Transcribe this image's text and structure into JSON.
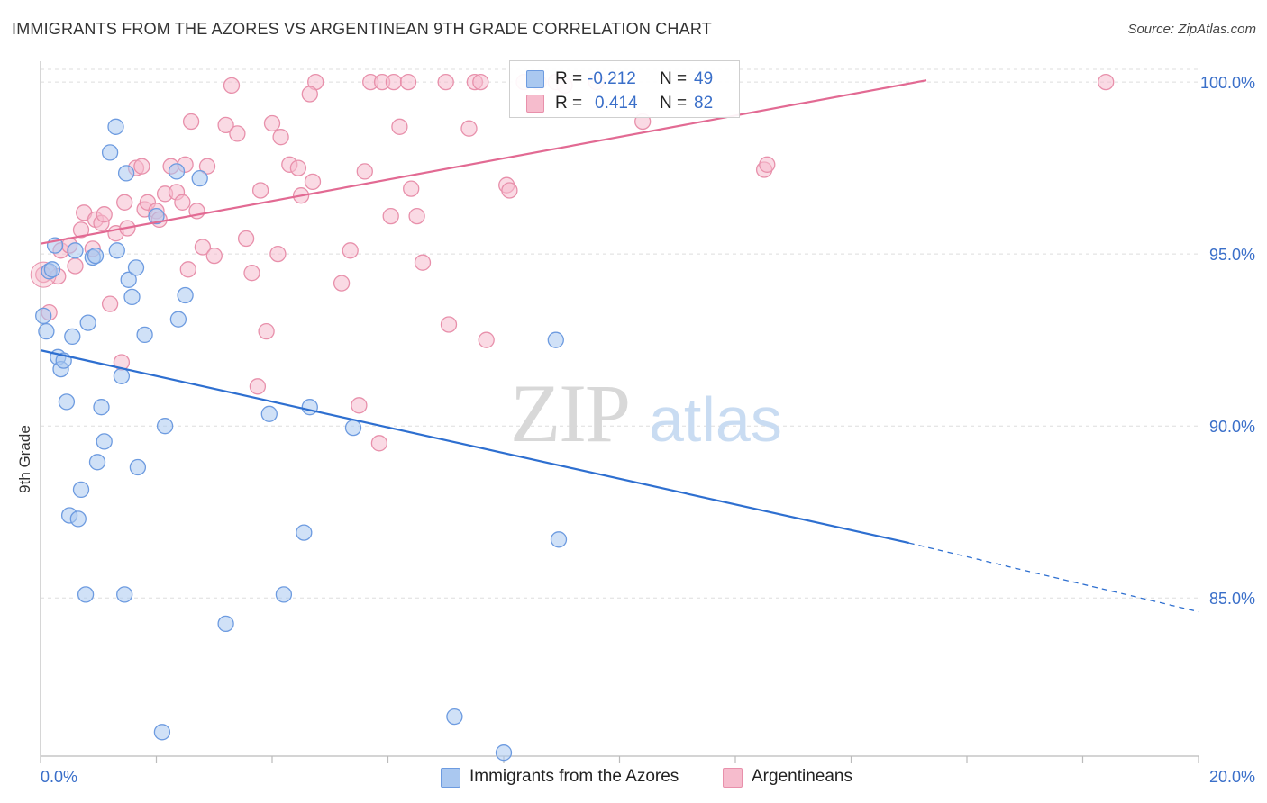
{
  "title": "IMMIGRANTS FROM THE AZORES VS ARGENTINEAN 9TH GRADE CORRELATION CHART",
  "source": "Source: ZipAtlas.com",
  "watermark": {
    "zip": "ZIP",
    "atlas": "atlas"
  },
  "legend": {
    "r_label": "R =",
    "n_label": "N =",
    "series": [
      {
        "name": "Immigrants from the Azores",
        "r": "-0.212",
        "n": "49"
      },
      {
        "name": "Argentineans",
        "r": "0.414",
        "n": "82"
      }
    ]
  },
  "colors": {
    "blue_fill": "#aac8f0",
    "blue_stroke": "#6d9be0",
    "blue_line": "#2e6fd0",
    "pink_fill": "#f6bccd",
    "pink_stroke": "#e890ab",
    "pink_line": "#e26a93",
    "tick_text": "#3a6fc9",
    "grid": "#dddddd"
  },
  "chart_data": {
    "type": "scatter",
    "title": "IMMIGRANTS FROM THE AZORES VS ARGENTINEAN 9TH GRADE CORRELATION CHART",
    "xlabel": "",
    "ylabel": "9th Grade",
    "xlim": [
      0,
      20
    ],
    "ylim": [
      80.4,
      100.5
    ],
    "x_tick_labels": [
      "0.0%",
      "20.0%"
    ],
    "y_tick_labels": [
      "100.0%",
      "95.0%",
      "90.0%",
      "85.0%"
    ],
    "y_ticks": [
      100,
      95,
      90,
      85
    ],
    "grid": true,
    "legend_position": "top-center",
    "series": [
      {
        "name": "Immigrants from the Azores",
        "color": "#aac8f0",
        "trend": {
          "x": [
            0,
            15.0
          ],
          "y": [
            92.2,
            86.6
          ],
          "dashed_to": [
            20,
            84.6
          ]
        },
        "points": [
          [
            0.1,
            92.75
          ],
          [
            0.15,
            94.5
          ],
          [
            0.25,
            95.25
          ],
          [
            0.3,
            92.0
          ],
          [
            0.35,
            91.65
          ],
          [
            0.4,
            91.9
          ],
          [
            0.45,
            90.7
          ],
          [
            0.5,
            87.4
          ],
          [
            0.55,
            92.6
          ],
          [
            0.6,
            95.1
          ],
          [
            0.65,
            87.3
          ],
          [
            0.7,
            88.15
          ],
          [
            0.78,
            85.1
          ],
          [
            0.82,
            93.0
          ],
          [
            0.9,
            94.9
          ],
          [
            0.95,
            94.95
          ],
          [
            0.98,
            88.95
          ],
          [
            1.05,
            90.55
          ],
          [
            1.1,
            89.55
          ],
          [
            1.2,
            97.95
          ],
          [
            1.3,
            98.7
          ],
          [
            1.32,
            95.1
          ],
          [
            1.4,
            91.45
          ],
          [
            1.45,
            85.1
          ],
          [
            1.48,
            97.35
          ],
          [
            1.52,
            94.25
          ],
          [
            1.58,
            93.75
          ],
          [
            1.65,
            94.6
          ],
          [
            1.68,
            88.8
          ],
          [
            1.8,
            92.65
          ],
          [
            2.0,
            96.1
          ],
          [
            2.1,
            81.1
          ],
          [
            2.15,
            90.0
          ],
          [
            2.35,
            97.4
          ],
          [
            2.38,
            93.1
          ],
          [
            2.5,
            93.8
          ],
          [
            2.75,
            97.2
          ],
          [
            3.2,
            84.25
          ],
          [
            3.95,
            90.35
          ],
          [
            4.2,
            85.1
          ],
          [
            4.55,
            86.9
          ],
          [
            4.65,
            90.55
          ],
          [
            5.4,
            89.95
          ],
          [
            7.15,
            81.55
          ],
          [
            8.0,
            80.5
          ],
          [
            8.9,
            92.5
          ],
          [
            8.95,
            86.7
          ],
          [
            0.05,
            93.2
          ],
          [
            0.2,
            94.55
          ]
        ]
      },
      {
        "name": "Argentineans",
        "color": "#f6bccd",
        "trend": {
          "x": [
            0,
            15.3
          ],
          "y": [
            95.3,
            100.05
          ]
        },
        "points": [
          [
            0.05,
            94.4
          ],
          [
            0.15,
            93.3
          ],
          [
            0.35,
            95.1
          ],
          [
            0.5,
            95.25
          ],
          [
            0.6,
            94.65
          ],
          [
            0.7,
            95.7
          ],
          [
            0.75,
            96.2
          ],
          [
            0.9,
            95.15
          ],
          [
            0.95,
            96.0
          ],
          [
            1.05,
            95.9
          ],
          [
            1.1,
            96.15
          ],
          [
            1.2,
            93.55
          ],
          [
            1.3,
            95.6
          ],
          [
            1.4,
            91.85
          ],
          [
            1.5,
            95.75
          ],
          [
            1.65,
            97.5
          ],
          [
            1.75,
            97.55
          ],
          [
            1.8,
            96.3
          ],
          [
            1.85,
            96.5
          ],
          [
            2.0,
            96.25
          ],
          [
            2.05,
            96.0
          ],
          [
            2.15,
            96.75
          ],
          [
            2.25,
            97.55
          ],
          [
            2.35,
            96.8
          ],
          [
            2.45,
            96.5
          ],
          [
            2.55,
            94.55
          ],
          [
            2.6,
            98.85
          ],
          [
            2.7,
            96.25
          ],
          [
            2.8,
            95.2
          ],
          [
            2.88,
            97.55
          ],
          [
            3.0,
            94.95
          ],
          [
            3.2,
            98.75
          ],
          [
            3.3,
            99.9
          ],
          [
            3.4,
            98.5
          ],
          [
            3.55,
            95.45
          ],
          [
            3.65,
            94.45
          ],
          [
            3.75,
            91.15
          ],
          [
            3.8,
            96.85
          ],
          [
            3.9,
            92.75
          ],
          [
            4.0,
            98.8
          ],
          [
            4.1,
            95.0
          ],
          [
            4.15,
            98.4
          ],
          [
            4.3,
            97.6
          ],
          [
            4.45,
            97.5
          ],
          [
            4.5,
            96.7
          ],
          [
            4.75,
            100.0
          ],
          [
            4.7,
            97.1
          ],
          [
            4.65,
            99.65
          ],
          [
            5.2,
            94.15
          ],
          [
            5.35,
            95.1
          ],
          [
            5.5,
            90.6
          ],
          [
            5.6,
            97.4
          ],
          [
            5.7,
            100.0
          ],
          [
            5.9,
            100.0
          ],
          [
            5.85,
            89.5
          ],
          [
            6.05,
            96.1
          ],
          [
            6.1,
            100.0
          ],
          [
            6.2,
            98.7
          ],
          [
            6.35,
            100.0
          ],
          [
            6.4,
            96.9
          ],
          [
            6.5,
            96.1
          ],
          [
            6.6,
            94.75
          ],
          [
            7.0,
            100.0
          ],
          [
            7.05,
            92.95
          ],
          [
            7.4,
            98.65
          ],
          [
            7.5,
            100.0
          ],
          [
            7.6,
            100.0
          ],
          [
            7.7,
            92.5
          ],
          [
            8.05,
            97.0
          ],
          [
            8.1,
            96.85
          ],
          [
            8.35,
            100.0
          ],
          [
            8.6,
            100.0
          ],
          [
            8.9,
            100.0
          ],
          [
            9.05,
            99.9
          ],
          [
            9.6,
            100.0
          ],
          [
            10.4,
            98.85
          ],
          [
            12.5,
            97.45
          ],
          [
            12.55,
            97.6
          ],
          [
            18.4,
            100.0
          ],
          [
            2.5,
            97.6
          ],
          [
            1.45,
            96.5
          ],
          [
            0.3,
            94.35
          ]
        ]
      }
    ]
  }
}
